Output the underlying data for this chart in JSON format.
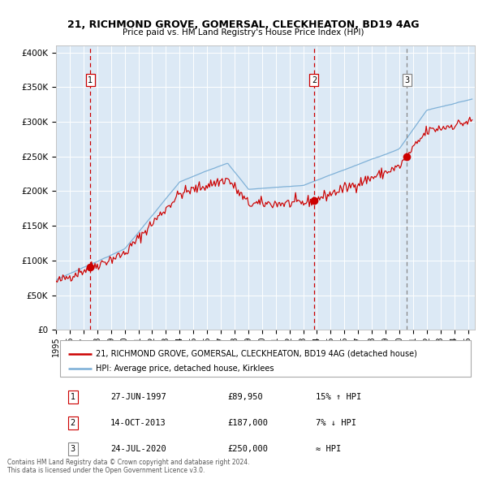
{
  "title1": "21, RICHMOND GROVE, GOMERSAL, CLECKHEATON, BD19 4AG",
  "title2": "Price paid vs. HM Land Registry's House Price Index (HPI)",
  "legend_line1": "21, RICHMOND GROVE, GOMERSAL, CLECKHEATON, BD19 4AG (detached house)",
  "legend_line2": "HPI: Average price, detached house, Kirklees",
  "sale_color": "#cc0000",
  "hpi_color": "#7aaed6",
  "background_color": "#dce9f5",
  "annotations": [
    {
      "num": 1,
      "date": "27-JUN-1997",
      "price": "£89,950",
      "hpi_txt": "15% ↑ HPI",
      "x_year": 1997.49,
      "y": 89950,
      "vline_color": "#cc0000"
    },
    {
      "num": 2,
      "date": "14-OCT-2013",
      "price": "£187,000",
      "hpi_txt": "7% ↓ HPI",
      "x_year": 2013.79,
      "y": 187000,
      "vline_color": "#cc0000"
    },
    {
      "num": 3,
      "date": "24-JUL-2020",
      "price": "£250,000",
      "hpi_txt": "≈ HPI",
      "x_year": 2020.56,
      "y": 250000,
      "vline_color": "#888888"
    }
  ],
  "footer1": "Contains HM Land Registry data © Crown copyright and database right 2024.",
  "footer2": "This data is licensed under the Open Government Licence v3.0.",
  "ylim": [
    0,
    410000
  ],
  "xlim_start": 1995.0,
  "xlim_end": 2025.5,
  "yticks": [
    0,
    50000,
    100000,
    150000,
    200000,
    250000,
    300000,
    350000,
    400000
  ]
}
